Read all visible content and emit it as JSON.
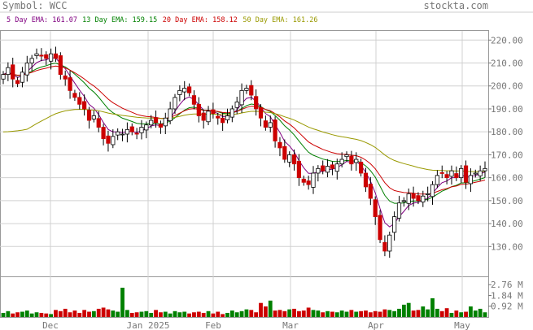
{
  "header": {
    "symbol_label": "Symbol: WCC",
    "site": "stockta.com"
  },
  "legend": [
    {
      "label": "5 Day EMA: ",
      "value": "161.07",
      "color": "#800080"
    },
    {
      "label": "13 Day EMA: ",
      "value": "159.15",
      "color": "#008000"
    },
    {
      "label": "20 Day EMA: ",
      "value": "158.12",
      "color": "#cc0000"
    },
    {
      "label": "50 Day EMA: ",
      "value": "161.26",
      "color": "#999900"
    }
  ],
  "colors": {
    "up": "#008000",
    "down": "#cc0000",
    "grid": "#d0d0d0",
    "axis": "#777777"
  },
  "chart_data": {
    "type": "candlestick",
    "x_labels": [
      "Dec",
      "Jan 2025",
      "Feb",
      "Mar",
      "Apr",
      "May"
    ],
    "y_ticks": [
      "130.00",
      "140.00",
      "150.00",
      "160.00",
      "170.00",
      "180.00",
      "190.00",
      "200.00",
      "210.00",
      "220.00"
    ],
    "ylim": [
      117,
      224
    ],
    "volume_ticks": [
      "0.92 M",
      "1.84 M",
      "2.76 M"
    ],
    "volume_ylim": [
      0,
      3.4
    ],
    "xlabel": "",
    "ylabel": "",
    "ema_last": {
      "ema5": 161.07,
      "ema13": 159.15,
      "ema20": 158.12,
      "ema50": 161.26
    },
    "close": [
      205,
      208,
      203,
      201,
      206,
      210,
      212,
      214,
      213,
      212,
      214,
      212,
      205,
      203,
      198,
      195,
      192,
      190,
      185,
      187,
      182,
      177,
      175,
      178,
      180,
      179,
      181,
      180,
      179,
      182,
      183,
      185,
      184,
      182,
      186,
      190,
      195,
      198,
      199,
      197,
      192,
      187,
      185,
      189,
      188,
      186,
      184,
      187,
      190,
      193,
      198,
      199,
      196,
      190,
      186,
      182,
      184,
      176,
      173,
      168,
      170,
      166,
      160,
      158,
      157,
      162,
      164,
      163,
      165,
      164,
      166,
      168,
      170,
      166,
      168,
      162,
      156,
      151,
      143,
      133,
      128,
      135,
      143,
      149,
      150,
      153,
      151,
      150,
      152,
      153,
      157,
      161,
      162,
      160,
      163,
      160,
      164,
      158,
      161,
      162,
      163,
      164
    ],
    "volume": [
      0.35,
      0.5,
      0.3,
      0.4,
      0.45,
      0.55,
      0.3,
      0.4,
      0.35,
      0.3,
      0.25,
      0.6,
      0.5,
      0.7,
      0.4,
      0.55,
      0.35,
      0.6,
      0.45,
      0.5,
      0.7,
      0.8,
      0.65,
      0.55,
      0.45,
      2.5,
      0.6,
      0.35,
      0.4,
      0.45,
      0.5,
      0.35,
      0.6,
      0.4,
      0.45,
      0.3,
      0.5,
      0.4,
      0.45,
      0.3,
      0.4,
      0.45,
      0.35,
      0.5,
      0.3,
      0.45,
      0.25,
      0.35,
      0.55,
      0.4,
      0.5,
      0.65,
      0.6,
      0.4,
      1.2,
      0.9,
      1.4,
      0.55,
      0.6,
      0.5,
      0.65,
      0.7,
      0.5,
      0.55,
      0.8,
      0.6,
      0.55,
      0.4,
      0.5,
      0.45,
      0.4,
      0.55,
      0.45,
      0.6,
      0.45,
      0.5,
      0.55,
      0.4,
      0.5,
      0.45,
      0.65,
      0.6,
      0.5,
      0.7,
      1.05,
      1.2,
      0.55,
      0.6,
      0.9,
      0.65,
      1.6,
      0.7,
      0.5,
      0.75,
      0.35,
      0.55,
      0.4,
      0.45,
      0.9,
      0.55,
      0.7,
      0.4
    ]
  }
}
